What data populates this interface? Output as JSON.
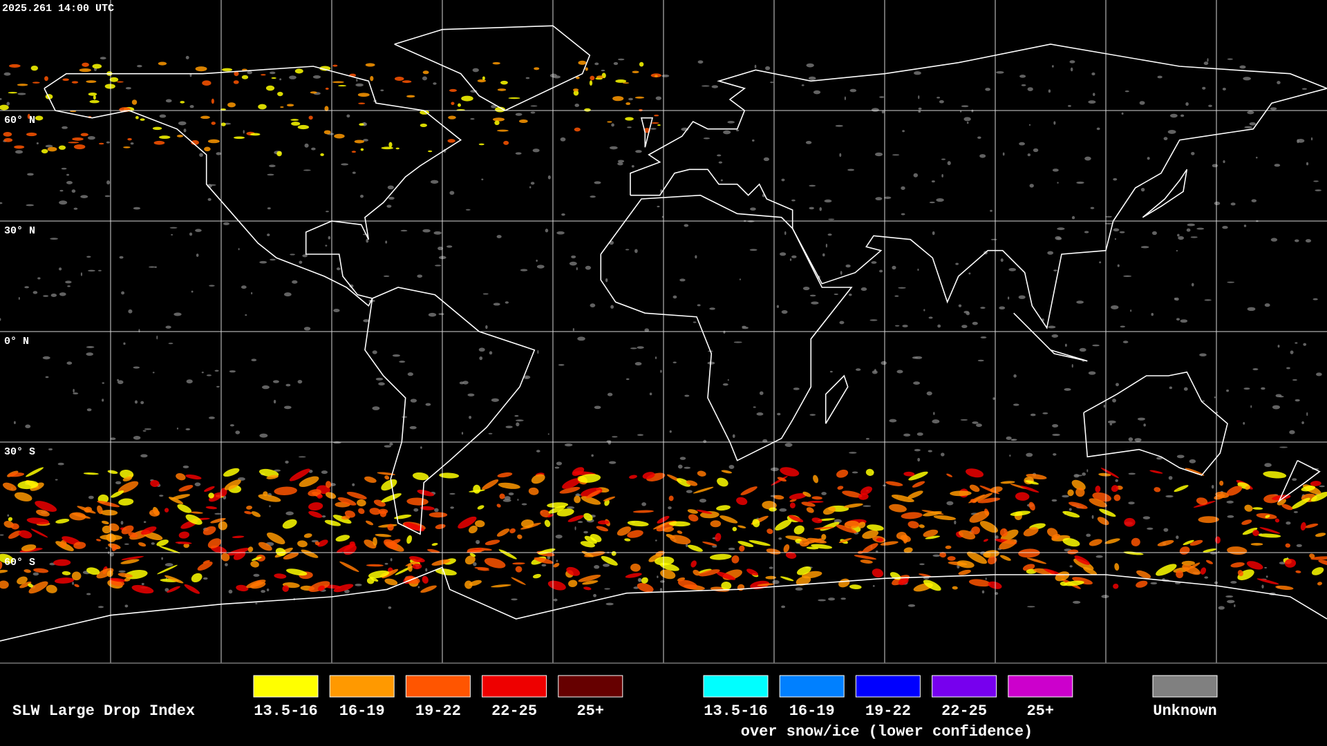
{
  "timestamp": "2025.261 14:00 UTC",
  "latitude_labels": [
    "60° N",
    "30° N",
    "0° N",
    "30° S",
    "60° S"
  ],
  "legend": {
    "title": "SLW Large Drop Index",
    "liquid": [
      {
        "label": "13.5-16",
        "color": "#ffff00"
      },
      {
        "label": "16-19",
        "color": "#ff9900"
      },
      {
        "label": "19-22",
        "color": "#ff5500"
      },
      {
        "label": "22-25",
        "color": "#ee0000"
      },
      {
        "label": "25+",
        "color": "#660000"
      }
    ],
    "snow_ice": [
      {
        "label": "13.5-16",
        "color": "#00ffff"
      },
      {
        "label": "16-19",
        "color": "#0080ff"
      },
      {
        "label": "19-22",
        "color": "#0000ff"
      },
      {
        "label": "22-25",
        "color": "#7700ee"
      },
      {
        "label": "25+",
        "color": "#cc00cc"
      }
    ],
    "snow_ice_caption": "over snow/ice (lower confidence)",
    "unknown": {
      "label": "Unknown",
      "color": "#808080"
    }
  }
}
